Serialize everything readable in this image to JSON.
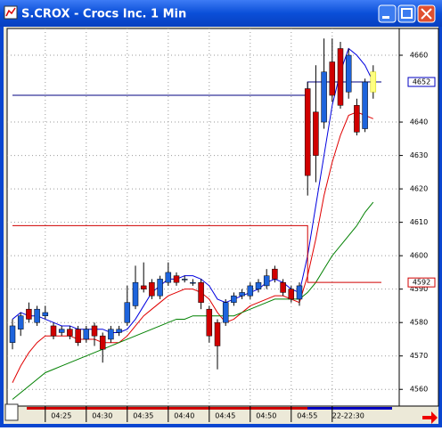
{
  "chart_data": {
    "type": "candlestick",
    "title": "S.CROX - Crocs Inc. 1 Min",
    "categories": [
      null,
      null,
      null,
      null,
      "04:25",
      null,
      null,
      null,
      null,
      "04:30",
      null,
      null,
      null,
      null,
      "04:35",
      null,
      null,
      null,
      null,
      "04:40",
      null,
      null,
      null,
      null,
      "04:45",
      null,
      null,
      null,
      null,
      "04:50",
      null,
      null,
      null,
      null,
      "04:55",
      null,
      null,
      null,
      null,
      "22-22:30",
      null,
      null,
      null,
      null,
      null
    ],
    "open": [
      4574,
      4578,
      4584,
      4580,
      4582,
      4579,
      4577,
      4578,
      4578,
      4575,
      4579,
      4576,
      4575,
      4577,
      4580,
      4585,
      4591,
      4592,
      4588,
      4592,
      4594,
      4593,
      4592,
      4592,
      4584,
      4580,
      4580,
      4586,
      4588,
      4588,
      4590,
      4591,
      4596,
      4592,
      4590,
      4587,
      4650,
      4643,
      4640,
      4658,
      4662,
      4649,
      4645,
      4638,
      4649
    ],
    "high": [
      4581,
      4583,
      4586,
      4585,
      4585,
      4580,
      4579,
      4579,
      4579,
      4579,
      4580,
      4577,
      4579,
      4579,
      4591,
      4597,
      4598,
      4593,
      4594,
      4598,
      4595,
      4594,
      4593,
      4593,
      4585,
      4581,
      4587,
      4589,
      4590,
      4592,
      4593,
      4596,
      4597,
      4593,
      4591,
      4592,
      4652,
      4657,
      4665,
      4665,
      4664,
      4662,
      4647,
      4653,
      4657
    ],
    "low": [
      4572,
      4576,
      4580,
      4579,
      4581,
      4575,
      4576,
      4575,
      4573,
      4574,
      4573,
      4568,
      4574,
      4576,
      4579,
      4584,
      4589,
      4587,
      4587,
      4591,
      4591,
      4592,
      4591,
      4584,
      4574,
      4566,
      4579,
      4585,
      4587,
      4587,
      4589,
      4590,
      4592,
      4588,
      4586,
      4585,
      4618,
      4622,
      4638,
      4646,
      4644,
      4647,
      4636,
      4637,
      4647
    ],
    "close": [
      4579,
      4582,
      4581,
      4584,
      4583,
      4576,
      4578,
      4576,
      4574,
      4578,
      4576,
      4572,
      4578,
      4578,
      4586,
      4592,
      4590,
      4588,
      4593,
      4595,
      4592,
      4593,
      4592,
      4586,
      4576,
      4573,
      4586,
      4588,
      4589,
      4591,
      4592,
      4594,
      4593,
      4589,
      4587,
      4591,
      4624,
      4630,
      4655,
      4648,
      4645,
      4660,
      4637,
      4652,
      4655
    ],
    "series": [
      {
        "name": "fast",
        "color": "#0000e0",
        "values": [
          4581,
          4583,
          4582,
          4582,
          4581,
          4580,
          4579,
          4579,
          4578,
          4578,
          4578,
          4578,
          4577,
          4577,
          4578,
          4581,
          4585,
          4589,
          4591,
          4593,
          4593,
          4594,
          4594,
          4593,
          4591,
          4587,
          4586,
          4587,
          4588,
          4589,
          4590,
          4592,
          4593,
          4592,
          4590,
          4589,
          4600,
          4615,
          4630,
          4645,
          4655,
          4662,
          4660,
          4657,
          4652
        ]
      },
      {
        "name": "medium",
        "color": "#e00000",
        "values": [
          4562,
          4567,
          4571,
          4574,
          4576,
          4576,
          4576,
          4576,
          4575,
          4575,
          4575,
          4574,
          4574,
          4574,
          4576,
          4579,
          4582,
          4584,
          4586,
          4588,
          4589,
          4590,
          4590,
          4589,
          4587,
          4583,
          4580,
          4581,
          4583,
          4585,
          4586,
          4587,
          4588,
          4588,
          4587,
          4586,
          4594,
          4605,
          4618,
          4628,
          4636,
          4642,
          4643,
          4642,
          4641
        ]
      },
      {
        "name": "slow",
        "color": "#008000",
        "values": [
          4557,
          4559,
          4561,
          4563,
          4565,
          4566,
          4567,
          4568,
          4569,
          4570,
          4571,
          4572,
          4573,
          4574,
          4575,
          4576,
          4577,
          4578,
          4579,
          4580,
          4581,
          4581,
          4582,
          4582,
          4582,
          4582,
          4582,
          4582,
          4583,
          4584,
          4585,
          4586,
          4587,
          4587,
          4587,
          4587,
          4589,
          4592,
          4596,
          4600,
          4603,
          4606,
          4609,
          4613,
          4616
        ]
      },
      {
        "name": "ref-blue",
        "color": "#000080",
        "step": true,
        "values": [
          4648,
          4648,
          4648,
          4648,
          4648,
          4648,
          4648,
          4648,
          4648,
          4648,
          4648,
          4648,
          4648,
          4648,
          4648,
          4648,
          4648,
          4648,
          4648,
          4648,
          4648,
          4648,
          4648,
          4648,
          4648,
          4648,
          4648,
          4648,
          4648,
          4648,
          4648,
          4648,
          4648,
          4648,
          4648,
          4648,
          4652,
          4652,
          4652,
          4652,
          4652,
          4652,
          4652,
          4652,
          4652
        ]
      },
      {
        "name": "ref-red",
        "color": "#d00000",
        "step": true,
        "values": [
          4609,
          4609,
          4609,
          4609,
          4609,
          4609,
          4609,
          4609,
          4609,
          4609,
          4609,
          4609,
          4609,
          4609,
          4609,
          4609,
          4609,
          4609,
          4609,
          4609,
          4609,
          4609,
          4609,
          4609,
          4609,
          4609,
          4609,
          4609,
          4609,
          4609,
          4609,
          4609,
          4609,
          4609,
          4609,
          4609,
          4592,
          4592,
          4592,
          4592,
          4592,
          4592,
          4592,
          4592,
          4592
        ]
      }
    ],
    "up_color": "#1e64dc",
    "down_color": "#d00000",
    "highlight_color": "#ffff80",
    "ylim": [
      4555,
      4668
    ],
    "yticks": [
      4560,
      4570,
      4580,
      4590,
      4600,
      4610,
      4620,
      4630,
      4640,
      4660
    ],
    "price_labels": [
      {
        "value": 4652,
        "color": "#0000c0"
      },
      {
        "value": 4592,
        "color": "#d00000"
      }
    ],
    "grid": true
  }
}
